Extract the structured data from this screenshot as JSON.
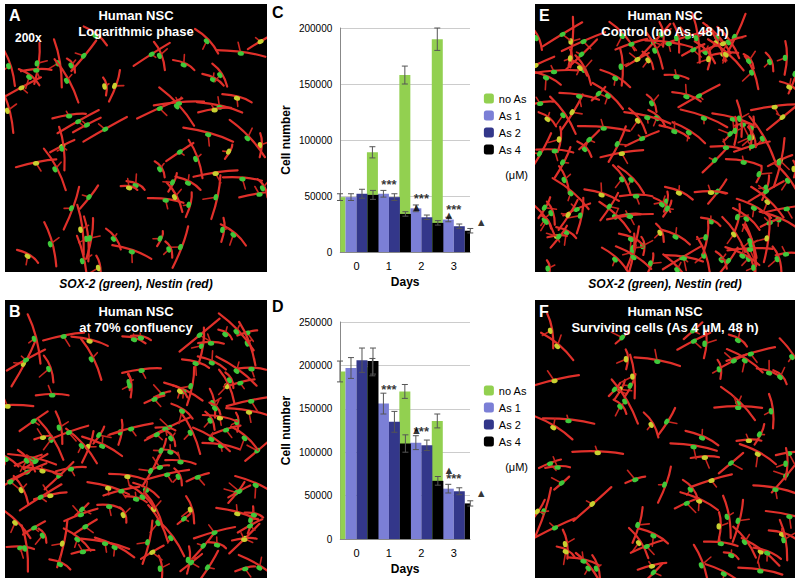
{
  "image_panels": [
    {
      "panel": "A",
      "title": [
        "Human NSC",
        "Logarithmic phase"
      ],
      "magnification": "200x",
      "caption": "SOX-2 (green), Nestin (red)"
    },
    {
      "panel": "B",
      "title": [
        "Human NSC",
        "at 70% confluency"
      ]
    },
    {
      "panel": "E",
      "title": [
        "Human NSC",
        "Control (no As, 48 h)"
      ],
      "caption": "SOX-2 (green), Nestin (red)"
    },
    {
      "panel": "F",
      "title": [
        "Human NSC",
        "Surviving cells (As 4 μM, 48 h)"
      ]
    }
  ],
  "chart_data": [
    {
      "panel": "C",
      "type": "bar",
      "categories": [
        "0",
        "1",
        "2",
        "3"
      ],
      "x_label": "Days",
      "y_label": "Cell number",
      "ylim": [
        0,
        200000
      ],
      "yticks": [
        0,
        50000,
        100000,
        150000,
        200000
      ],
      "grid": true,
      "legend": "right",
      "legend_note": "(μM)",
      "series": [
        {
          "name": "no As",
          "color": "#92d050",
          "values": [
            49000,
            89000,
            158000,
            190000
          ],
          "errors": [
            3000,
            5000,
            8000,
            10000
          ]
        },
        {
          "name": "As 1",
          "color": "#7b7fd6",
          "values": [
            49000,
            52000,
            39000,
            29000
          ],
          "errors": [
            3000,
            3000,
            3000,
            2000
          ]
        },
        {
          "name": "As 2",
          "color": "#33378a",
          "values": [
            52000,
            49000,
            31000,
            23000
          ],
          "errors": [
            4000,
            3000,
            2000,
            2000
          ]
        },
        {
          "name": "As 4",
          "color": "#000000",
          "values": [
            51000,
            34000,
            26000,
            19000
          ],
          "errors": [
            4000,
            2000,
            2000,
            2000
          ]
        }
      ],
      "annotations": [
        {
          "text": "***",
          "category": "1",
          "y": 60000
        },
        {
          "text": "▲",
          "category": "1",
          "y": 40000,
          "series": "As 4"
        },
        {
          "text": "***",
          "category": "2",
          "y": 48000
        },
        {
          "text": "▲",
          "category": "2",
          "y": 33000,
          "series": "As 4"
        },
        {
          "text": "***",
          "category": "3",
          "y": 38000
        },
        {
          "text": "▲",
          "category": "3",
          "y": 27000,
          "series": "As 4"
        }
      ]
    },
    {
      "panel": "D",
      "type": "bar",
      "categories": [
        "0",
        "1",
        "2",
        "3"
      ],
      "x_label": "Days",
      "y_label": "Cell number",
      "ylim": [
        0,
        250000
      ],
      "yticks": [
        0,
        50000,
        100000,
        150000,
        200000,
        250000
      ],
      "grid": true,
      "legend": "right",
      "legend_note": "(μM)",
      "series": [
        {
          "name": "no As",
          "color": "#92d050",
          "values": [
            193000,
            198000,
            170000,
            136000
          ],
          "errors": [
            12000,
            10000,
            8000,
            8000
          ]
        },
        {
          "name": "As 1",
          "color": "#7b7fd6",
          "values": [
            197000,
            156000,
            111000,
            58000
          ],
          "errors": [
            12000,
            12000,
            8000,
            5000
          ]
        },
        {
          "name": "As 2",
          "color": "#33378a",
          "values": [
            206000,
            135000,
            108000,
            55000
          ],
          "errors": [
            14000,
            12000,
            6000,
            4000
          ]
        },
        {
          "name": "As 4",
          "color": "#000000",
          "values": [
            205000,
            110000,
            67000,
            41000
          ],
          "errors": [
            15000,
            10000,
            5000,
            3000
          ]
        }
      ],
      "annotations": [
        {
          "text": "***",
          "category": "1",
          "y": 172000
        },
        {
          "text": "▲",
          "category": "1",
          "y": 126000,
          "series": "As 4"
        },
        {
          "text": "***",
          "category": "2",
          "y": 124000
        },
        {
          "text": "▲",
          "category": "2",
          "y": 80000,
          "series": "As 4"
        },
        {
          "text": "***",
          "category": "3",
          "y": 70000
        },
        {
          "text": "▲",
          "category": "3",
          "y": 53000,
          "series": "As 4"
        }
      ]
    }
  ]
}
